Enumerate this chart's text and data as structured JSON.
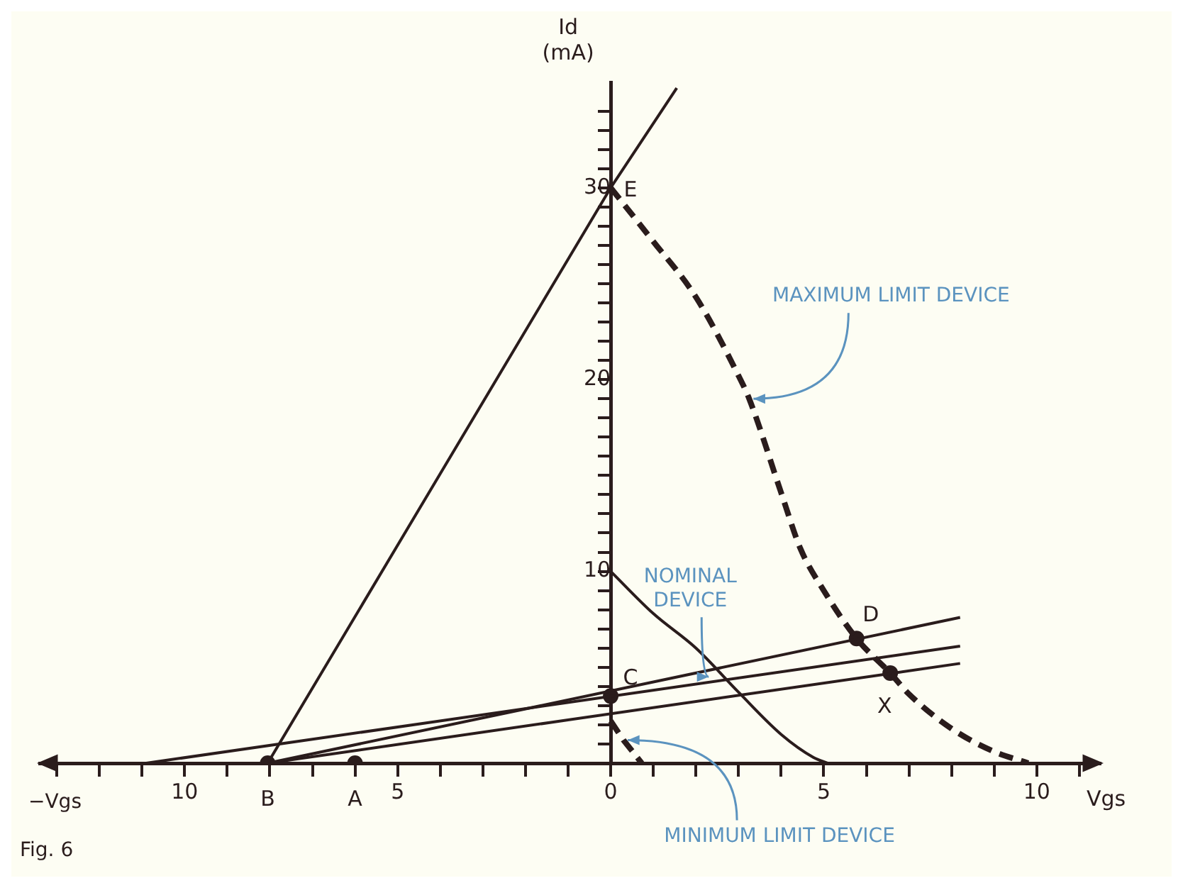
{
  "chart_data": {
    "type": "line",
    "xlabel": "Vgs",
    "ylabel": "Id\n(mA)",
    "xlim": [
      -13.4,
      11.5
    ],
    "ylim": [
      0,
      35.5
    ],
    "xticks": [
      {
        "value": -13,
        "label": null
      },
      {
        "value": -12,
        "label": null
      },
      {
        "value": -11,
        "label": null
      },
      {
        "value": -10,
        "label": "10"
      },
      {
        "value": -9,
        "label": null
      },
      {
        "value": -8,
        "label": null
      },
      {
        "value": -7,
        "label": null
      },
      {
        "value": -6,
        "label": null
      },
      {
        "value": -5,
        "label": "5"
      },
      {
        "value": -4,
        "label": null
      },
      {
        "value": -3,
        "label": null
      },
      {
        "value": -2,
        "label": null
      },
      {
        "value": -1,
        "label": null
      },
      0,
      {
        "value": 1,
        "label": null
      },
      {
        "value": 2,
        "label": null
      },
      {
        "value": 3,
        "label": null
      },
      {
        "value": 4,
        "label": null
      },
      5,
      {
        "value": 6,
        "label": null
      },
      {
        "value": 7,
        "label": null
      },
      {
        "value": 8,
        "label": null
      },
      {
        "value": 9,
        "label": null
      },
      10,
      {
        "value": 11,
        "label": null
      }
    ],
    "yticks": [
      {
        "value": 1,
        "label": null
      },
      {
        "value": 2,
        "label": null
      },
      {
        "value": 3,
        "label": null
      },
      {
        "value": 4,
        "label": null
      },
      {
        "value": 5,
        "label": null
      },
      {
        "value": 6,
        "label": null
      },
      {
        "value": 7,
        "label": null
      },
      {
        "value": 8,
        "label": null
      },
      {
        "value": 9,
        "label": null
      },
      10,
      {
        "value": 11,
        "label": null
      },
      {
        "value": 12,
        "label": null
      },
      {
        "value": 13,
        "label": null
      },
      {
        "value": 14,
        "label": null
      },
      {
        "value": 15,
        "label": null
      },
      {
        "value": 16,
        "label": null
      },
      {
        "value": 17,
        "label": null
      },
      {
        "value": 18,
        "label": null
      },
      {
        "value": 19,
        "label": null
      },
      20,
      {
        "value": 21,
        "label": null
      },
      {
        "value": 22,
        "label": null
      },
      {
        "value": 23,
        "label": null
      },
      {
        "value": 24,
        "label": null
      },
      {
        "value": 25,
        "label": null
      },
      {
        "value": 26,
        "label": null
      },
      {
        "value": 27,
        "label": null
      },
      {
        "value": 28,
        "label": null
      },
      {
        "value": 29,
        "label": null
      },
      30,
      {
        "value": 31,
        "label": null
      },
      {
        "value": 32,
        "label": null
      },
      {
        "value": 33,
        "label": null
      },
      {
        "value": 34,
        "label": null
      }
    ],
    "grid": false,
    "legend": false,
    "series": [
      {
        "type": "line",
        "color": "#2a1c1c",
        "line_style": "dashed",
        "x": [
          0,
          1,
          2,
          3,
          3.25,
          4,
          4.45,
          5,
          5.77,
          6.56,
          7,
          8,
          9,
          9.8
        ],
        "values": [
          30,
          27.2,
          24.3,
          20.2,
          19,
          14.1,
          11.2,
          9,
          6.5,
          4.7,
          3.6,
          1.8,
          0.6,
          0
        ]
      },
      {
        "type": "line",
        "color": "#2a1c1c",
        "line_style": "solid",
        "x": [
          0,
          1,
          2,
          3,
          4,
          4.76,
          5.1
        ],
        "values": [
          10,
          7.8,
          6,
          3.7,
          1.5,
          0.3,
          0
        ]
      },
      {
        "type": "line",
        "color": "#2a1c1c",
        "line_style": "dashed",
        "x": [
          0,
          0.3,
          0.73
        ],
        "values": [
          2.2,
          1.2,
          0
        ]
      },
      {
        "type": "line",
        "color": "#2a1c1c",
        "line_style": "solid",
        "x": [
          -8.05,
          0,
          1.55
        ],
        "values": [
          0,
          30,
          35.2
        ]
      },
      {
        "type": "line",
        "color": "#2a1c1c",
        "line_style": "solid",
        "x": [
          -10.9,
          8.2
        ],
        "values": [
          0,
          6.1
        ]
      },
      {
        "type": "line",
        "color": "#2a1c1c",
        "line_style": "solid",
        "x": [
          -8.05,
          8.2
        ],
        "values": [
          0,
          7.6
        ]
      },
      {
        "type": "line",
        "color": "#2a1c1c",
        "line_style": "solid",
        "x": [
          -8.05,
          8.2
        ],
        "values": [
          0,
          5.2
        ]
      },
      {
        "type": "scatter",
        "color": "#2a1c1c",
        "marker": "circle",
        "x": [
          -8.05,
          -6,
          0,
          5.77,
          6.56
        ],
        "values": [
          0,
          0,
          3.5,
          6.5,
          4.7
        ]
      }
    ],
    "annotations": [
      {
        "text": "E",
        "x": 0,
        "y": 30
      },
      {
        "text": "D",
        "x": 5.77,
        "y": 6.5
      },
      {
        "text": "C",
        "x": 0,
        "y": 3.5
      },
      {
        "text": "X",
        "x": 6.56,
        "y": 4.7
      },
      {
        "text": "B",
        "x": -8.05,
        "y": 0
      },
      {
        "text": "A",
        "x": -6,
        "y": 0
      },
      {
        "text": "MAXIMUM LIMIT DEVICE",
        "x": 3.25,
        "y": 19
      },
      {
        "text": "NOMINAL\nDEVICE",
        "x": 2.2,
        "y": 4.5
      },
      {
        "text": "MINIMUM LIMIT DEVICE",
        "x": 0.3,
        "y": 1.2
      },
      "−Vgs",
      "Fig. 6"
    ]
  }
}
